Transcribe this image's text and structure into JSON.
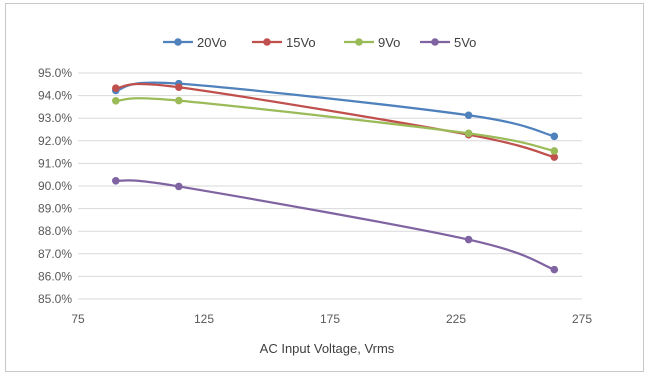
{
  "chart_data": {
    "type": "line",
    "title": "",
    "xlabel": "AC Input Voltage, Vrms",
    "ylabel": "",
    "xlim": [
      75,
      275
    ],
    "ylim": [
      0.85,
      0.95
    ],
    "xticks": [
      75,
      125,
      175,
      225,
      275
    ],
    "yticks": [
      0.85,
      0.86,
      0.87,
      0.88,
      0.89,
      0.9,
      0.91,
      0.92,
      0.93,
      0.94,
      0.95
    ],
    "ytick_format": "percent1",
    "grid": true,
    "legend_position": "top",
    "series": [
      {
        "name": "20Vo",
        "color": "#4f81bd",
        "x": [
          90,
          115,
          230,
          264
        ],
        "y": [
          0.9423,
          0.9453,
          0.9313,
          0.922
        ]
      },
      {
        "name": "15Vo",
        "color": "#c0504d",
        "x": [
          90,
          115,
          230,
          264
        ],
        "y": [
          0.9433,
          0.9437,
          0.9227,
          0.9128
        ]
      },
      {
        "name": "9Vo",
        "color": "#9bbb59",
        "x": [
          90,
          115,
          230,
          264
        ],
        "y": [
          0.9377,
          0.9378,
          0.9233,
          0.9155
        ]
      },
      {
        "name": "5Vo",
        "color": "#8064a2",
        "x": [
          90,
          115,
          230,
          264
        ],
        "y": [
          0.9023,
          0.8998,
          0.8763,
          0.863
        ]
      }
    ]
  }
}
